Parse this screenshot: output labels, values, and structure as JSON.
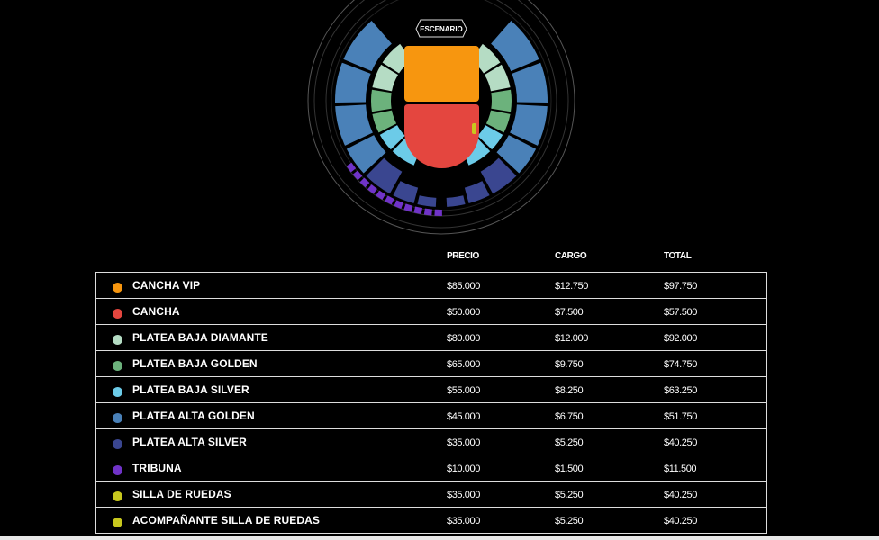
{
  "map": {
    "stage_label": "ESCENARIO",
    "colors": {
      "cancha_vip": "#f7960f",
      "cancha": "#e4463f",
      "platea_baja_diamante": "#b5dcc4",
      "platea_baja_golden": "#6cb27c",
      "platea_baja_silver": "#6ccbe8",
      "platea_alta_golden": "#4a81b8",
      "platea_alta_silver": "#3a4690",
      "tribuna": "#7033c8",
      "silla_de_ruedas": "#c8c81e"
    }
  },
  "table": {
    "headers": {
      "precio": "PRECIO",
      "cargo": "CARGO",
      "total": "TOTAL"
    },
    "rows": [
      {
        "name": "CANCHA VIP",
        "color": "#f7960f",
        "precio": "$85.000",
        "cargo": "$12.750",
        "total": "$97.750"
      },
      {
        "name": "CANCHA",
        "color": "#e4463f",
        "precio": "$50.000",
        "cargo": "$7.500",
        "total": "$57.500"
      },
      {
        "name": "PLATEA BAJA DIAMANTE",
        "color": "#b5dcc4",
        "precio": "$80.000",
        "cargo": "$12.000",
        "total": "$92.000"
      },
      {
        "name": "PLATEA BAJA GOLDEN",
        "color": "#6cb27c",
        "precio": "$65.000",
        "cargo": "$9.750",
        "total": "$74.750"
      },
      {
        "name": "PLATEA BAJA SILVER",
        "color": "#6ccbe8",
        "precio": "$55.000",
        "cargo": "$8.250",
        "total": "$63.250"
      },
      {
        "name": "PLATEA ALTA GOLDEN",
        "color": "#4a81b8",
        "precio": "$45.000",
        "cargo": "$6.750",
        "total": "$51.750"
      },
      {
        "name": "PLATEA ALTA SILVER",
        "color": "#3a4690",
        "precio": "$35.000",
        "cargo": "$5.250",
        "total": "$40.250"
      },
      {
        "name": "TRIBUNA",
        "color": "#7033c8",
        "precio": "$10.000",
        "cargo": "$1.500",
        "total": "$11.500"
      },
      {
        "name": "SILLA DE RUEDAS",
        "color": "#c8c81e",
        "precio": "$35.000",
        "cargo": "$5.250",
        "total": "$40.250"
      },
      {
        "name": "ACOMPAÑANTE SILLA DE RUEDAS",
        "color": "#c8c81e",
        "precio": "$35.000",
        "cargo": "$5.250",
        "total": "$40.250"
      }
    ]
  }
}
